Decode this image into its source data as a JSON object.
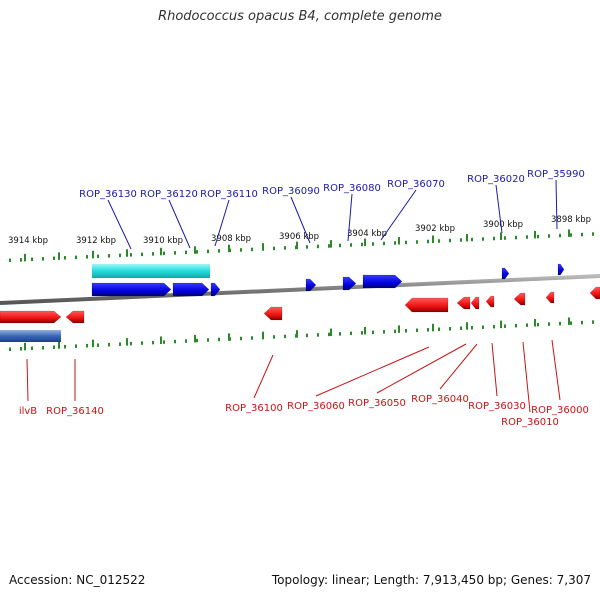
{
  "title": "Rhodococcus opacus B4, complete genome",
  "footer": {
    "accession": "Accession: NC_012522",
    "summary": "Topology: linear; Length: 7,913,450 bp; Genes: 7,307"
  },
  "colors": {
    "forward_gene": "#0000e0",
    "reverse_gene": "#ee1111",
    "forward_label": "#1a1aa8",
    "reverse_label": "#c81414",
    "operon": "#22dddd",
    "tick": "#2a8a2a",
    "backbone": "#888888"
  },
  "kbp_labels": [
    "3914 kbp",
    "3912 kbp",
    "3910 kbp",
    "3908 kbp",
    "3906 kbp",
    "3904 kbp",
    "3902 kbp",
    "3900 kbp",
    "3898 kbp"
  ],
  "top_genes": [
    "ROP_36130",
    "ROP_36120",
    "ROP_36110",
    "ROP_36090",
    "ROP_36080",
    "ROP_36070",
    "ROP_36020",
    "ROP_35990"
  ],
  "bottom_genes": [
    "ilvB",
    "ROP_36140",
    "ROP_36100",
    "ROP_36060",
    "ROP_36050",
    "ROP_36040",
    "ROP_36030",
    "ROP_36010",
    "ROP_36000"
  ]
}
